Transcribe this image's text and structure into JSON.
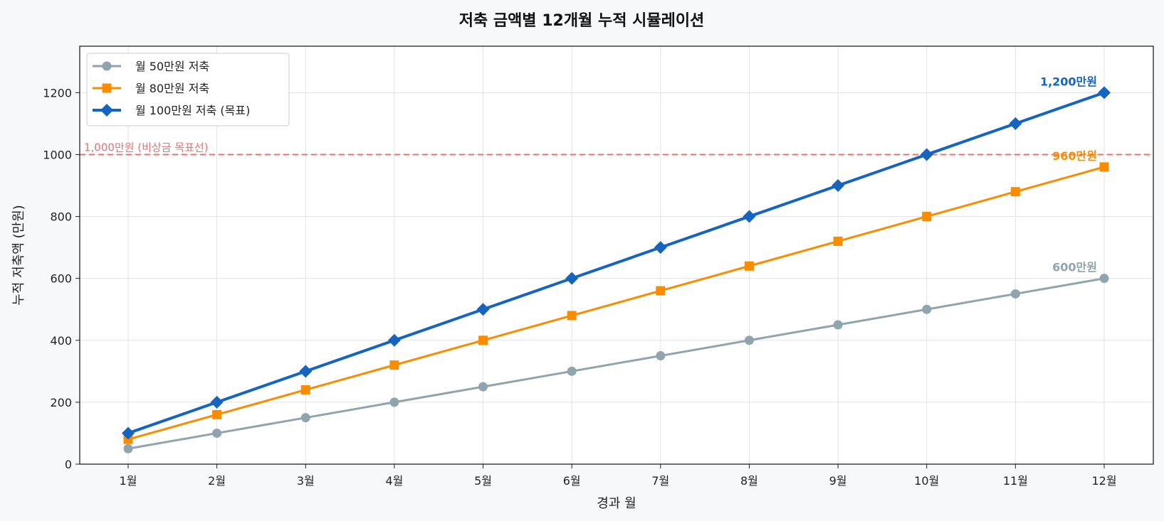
{
  "chart_data": {
    "type": "line",
    "title": "저축 금액별 12개월 누적 시뮬레이션",
    "xlabel": "경과 월",
    "ylabel": "누적 저축액 (만원)",
    "categories": [
      "1월",
      "2월",
      "3월",
      "4월",
      "5월",
      "6월",
      "7월",
      "8월",
      "9월",
      "10월",
      "11월",
      "12월"
    ],
    "ylim": [
      0,
      1350
    ],
    "yticks": [
      0,
      200,
      400,
      600,
      800,
      1000,
      1200
    ],
    "grid": true,
    "legend_position": "top-left",
    "series": [
      {
        "name": "월 50만원 저축",
        "color": "#90a4ae",
        "marker": "circle",
        "values": [
          50,
          100,
          150,
          200,
          250,
          300,
          350,
          400,
          450,
          500,
          550,
          600
        ],
        "end_label": "600만원"
      },
      {
        "name": "월 80만원 저축",
        "color": "#fb8c00",
        "marker": "square",
        "values": [
          80,
          160,
          240,
          320,
          400,
          480,
          560,
          640,
          720,
          800,
          880,
          960
        ],
        "end_label": "960만원"
      },
      {
        "name": "월 100만원 저축 (목표)",
        "color": "#1565c0",
        "marker": "diamond",
        "values": [
          100,
          200,
          300,
          400,
          500,
          600,
          700,
          800,
          900,
          1000,
          1100,
          1200
        ],
        "end_label": "1,200만원"
      }
    ],
    "reference_line": {
      "value": 1000,
      "label": "1,000만원 (비상금 목표선)",
      "color": "#e57373"
    }
  }
}
